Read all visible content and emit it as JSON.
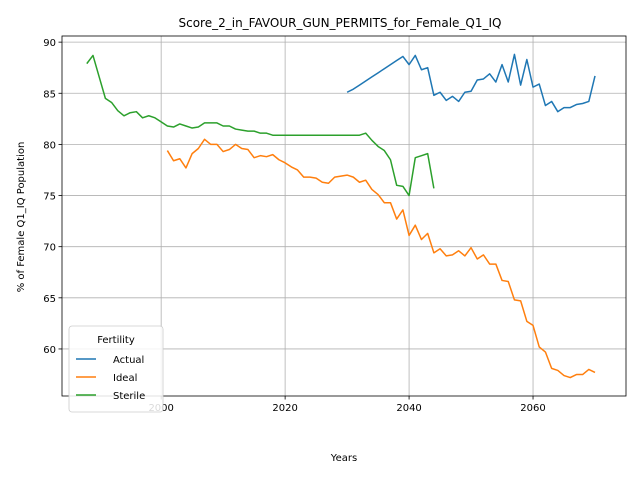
{
  "chart_data": {
    "type": "line",
    "title": "Score_2_in_FAVOUR_GUN_PERMITS_for_Female_Q1_IQ",
    "xlabel": "Years",
    "ylabel": "% of Female Q1_IQ Population",
    "xlim": [
      1984,
      2075
    ],
    "ylim": [
      55.4,
      90.6
    ],
    "xticks": [
      2000,
      2020,
      2040,
      2060
    ],
    "yticks": [
      60,
      65,
      70,
      75,
      80,
      85,
      90
    ],
    "grid": true,
    "legend": {
      "title": "Fertility",
      "placement": "lower-left"
    },
    "series": [
      {
        "name": "Actual",
        "color": "#1f77b4",
        "x": [
          2030,
          2031,
          2032,
          2033,
          2034,
          2035,
          2036,
          2037,
          2038,
          2039,
          2040,
          2041,
          2042,
          2043,
          2044,
          2045,
          2046,
          2047,
          2048,
          2049,
          2050,
          2051,
          2052,
          2053,
          2054,
          2055,
          2056,
          2057,
          2058,
          2059,
          2060,
          2061,
          2062,
          2063,
          2064,
          2065,
          2066,
          2067,
          2068,
          2069,
          2070
        ],
        "values": [
          85.1,
          85.4,
          85.8,
          86.2,
          86.6,
          87.0,
          87.4,
          87.8,
          88.2,
          88.6,
          87.8,
          88.7,
          87.3,
          87.5,
          84.8,
          85.1,
          84.3,
          84.7,
          84.2,
          85.1,
          85.2,
          86.3,
          86.4,
          86.9,
          86.1,
          87.8,
          86.1,
          88.8,
          85.8,
          88.3,
          85.6,
          85.9,
          83.8,
          84.2,
          83.2,
          83.6,
          83.6,
          83.9,
          84.0,
          84.2,
          86.7
        ]
      },
      {
        "name": "Ideal",
        "color": "#ff7f0e",
        "x": [
          2001,
          2002,
          2003,
          2004,
          2005,
          2006,
          2007,
          2008,
          2009,
          2010,
          2011,
          2012,
          2013,
          2014,
          2015,
          2016,
          2017,
          2018,
          2019,
          2020,
          2021,
          2022,
          2023,
          2024,
          2025,
          2026,
          2027,
          2028,
          2029,
          2030,
          2031,
          2032,
          2033,
          2034,
          2035,
          2036,
          2037,
          2038,
          2039,
          2040,
          2041,
          2042,
          2043,
          2044,
          2045,
          2046,
          2047,
          2048,
          2049,
          2050,
          2051,
          2052,
          2053,
          2054,
          2055,
          2056,
          2057,
          2058,
          2059,
          2060,
          2061,
          2062,
          2063,
          2064,
          2065,
          2066,
          2067,
          2068,
          2069,
          2070
        ],
        "values": [
          79.4,
          78.4,
          78.6,
          77.7,
          79.1,
          79.6,
          80.5,
          80.0,
          80.0,
          79.3,
          79.5,
          80.0,
          79.6,
          79.5,
          78.7,
          78.9,
          78.8,
          79.0,
          78.5,
          78.2,
          77.8,
          77.5,
          76.8,
          76.8,
          76.7,
          76.3,
          76.2,
          76.8,
          76.9,
          77.0,
          76.8,
          76.3,
          76.5,
          75.6,
          75.1,
          74.3,
          74.3,
          72.7,
          73.6,
          71.1,
          72.1,
          70.7,
          71.3,
          69.4,
          69.8,
          69.1,
          69.2,
          69.6,
          69.1,
          69.9,
          68.8,
          69.2,
          68.3,
          68.3,
          66.7,
          66.6,
          64.8,
          64.7,
          62.7,
          62.3,
          60.2,
          59.7,
          58.1,
          57.9,
          57.4,
          57.2,
          57.5,
          57.5,
          58.0,
          57.7
        ]
      },
      {
        "name": "Sterile",
        "color": "#2ca02c",
        "x": [
          1988,
          1989,
          1990,
          1991,
          1992,
          1993,
          1994,
          1995,
          1996,
          1997,
          1998,
          1999,
          2000,
          2001,
          2002,
          2003,
          2004,
          2005,
          2006,
          2007,
          2008,
          2009,
          2010,
          2011,
          2012,
          2013,
          2014,
          2015,
          2016,
          2017,
          2018,
          2019,
          2020,
          2021,
          2022,
          2023,
          2024,
          2025,
          2026,
          2027,
          2028,
          2029,
          2030,
          2031,
          2032,
          2033,
          2034,
          2035,
          2036,
          2037,
          2038,
          2039,
          2040,
          2041,
          2042,
          2043,
          2044
        ],
        "values": [
          87.9,
          88.7,
          86.6,
          84.5,
          84.1,
          83.3,
          82.8,
          83.1,
          83.2,
          82.6,
          82.8,
          82.6,
          82.2,
          81.8,
          81.7,
          82.0,
          81.8,
          81.6,
          81.7,
          82.1,
          82.1,
          82.1,
          81.8,
          81.8,
          81.5,
          81.4,
          81.3,
          81.3,
          81.1,
          81.1,
          80.9,
          80.9,
          80.9,
          80.9,
          80.9,
          80.9,
          80.9,
          80.9,
          80.9,
          80.9,
          80.9,
          80.9,
          80.9,
          80.9,
          80.9,
          81.1,
          80.4,
          79.8,
          79.4,
          78.5,
          76.0,
          75.9,
          75.0,
          78.7,
          78.9,
          79.1,
          75.7
        ]
      }
    ]
  }
}
